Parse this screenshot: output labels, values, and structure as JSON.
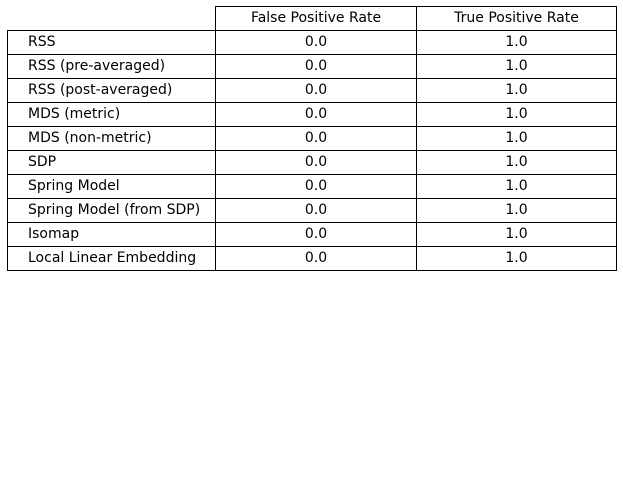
{
  "chart_data": {
    "type": "table",
    "columns": [
      "False Positive Rate",
      "True Positive Rate"
    ],
    "rows": [
      {
        "label": "RSS",
        "values": [
          "0.0",
          "1.0"
        ]
      },
      {
        "label": "RSS (pre-averaged)",
        "values": [
          "0.0",
          "1.0"
        ]
      },
      {
        "label": "RSS (post-averaged)",
        "values": [
          "0.0",
          "1.0"
        ]
      },
      {
        "label": "MDS (metric)",
        "values": [
          "0.0",
          "1.0"
        ]
      },
      {
        "label": "MDS (non-metric)",
        "values": [
          "0.0",
          "1.0"
        ]
      },
      {
        "label": "SDP",
        "values": [
          "0.0",
          "1.0"
        ]
      },
      {
        "label": "Spring Model",
        "values": [
          "0.0",
          "1.0"
        ]
      },
      {
        "label": "Spring Model (from SDP)",
        "values": [
          "0.0",
          "1.0"
        ]
      },
      {
        "label": "Isomap",
        "values": [
          "0.0",
          "1.0"
        ]
      },
      {
        "label": "Local Linear Embedding",
        "values": [
          "0.0",
          "1.0"
        ]
      }
    ]
  }
}
